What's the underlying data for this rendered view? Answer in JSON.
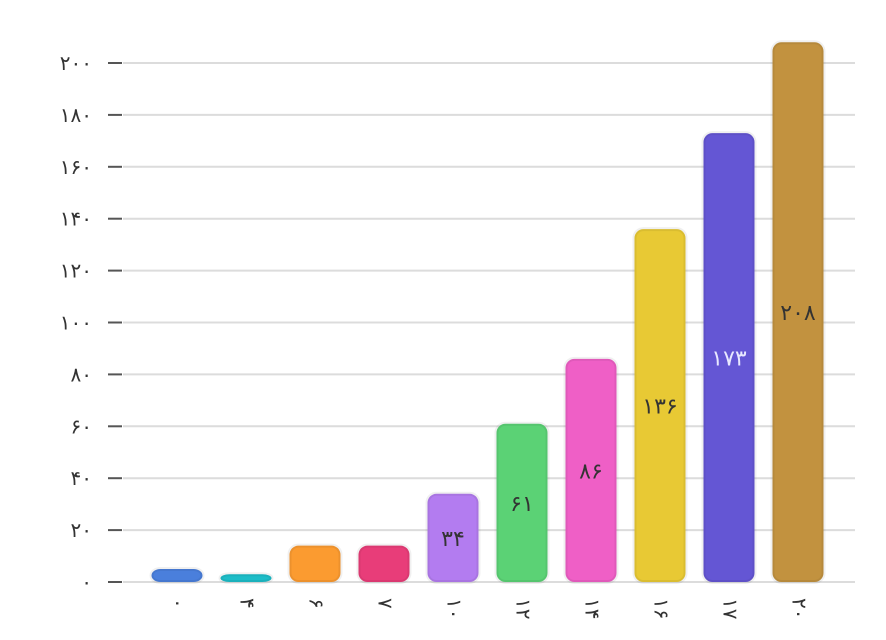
{
  "chart_data": {
    "type": "bar",
    "title": "",
    "xlabel": "",
    "ylabel": "",
    "categories": [
      "۰",
      "۴",
      "۶",
      "۷",
      "۱۰",
      "۱۲",
      "۱۴",
      "۱۶",
      "۱۷",
      "۲۰"
    ],
    "values": [
      5,
      3,
      14,
      14,
      34,
      61,
      86,
      136,
      173,
      208
    ],
    "data_labels": [
      "",
      "",
      "",
      "",
      "۳۴",
      "۶۱",
      "۸۶",
      "۱۳۶",
      "۱۷۳",
      "۲۰۸"
    ],
    "colors": [
      "#4a7fdc",
      "#1dbdc8",
      "#fb9b30",
      "#e83d79",
      "#b37cf0",
      "#5bd275",
      "#ef5fc6",
      "#e8c934",
      "#6456d4",
      "#c2923f"
    ],
    "label_colors": [
      "#333333",
      "#333333",
      "#333333",
      "#333333",
      "#333333",
      "#333333",
      "#333333",
      "#333333",
      "#e8e8ff",
      "#333333"
    ],
    "ylim": [
      0,
      208
    ],
    "yticks": [
      0,
      20,
      40,
      60,
      80,
      100,
      120,
      140,
      160,
      180,
      200
    ],
    "ytick_labels": [
      "۰",
      "۲۰",
      "۴۰",
      "۶۰",
      "۸۰",
      "۱۰۰",
      "۱۲۰",
      "۱۴۰",
      "۱۶۰",
      "۱۸۰",
      "۲۰۰"
    ],
    "grid": true,
    "legend": false
  }
}
